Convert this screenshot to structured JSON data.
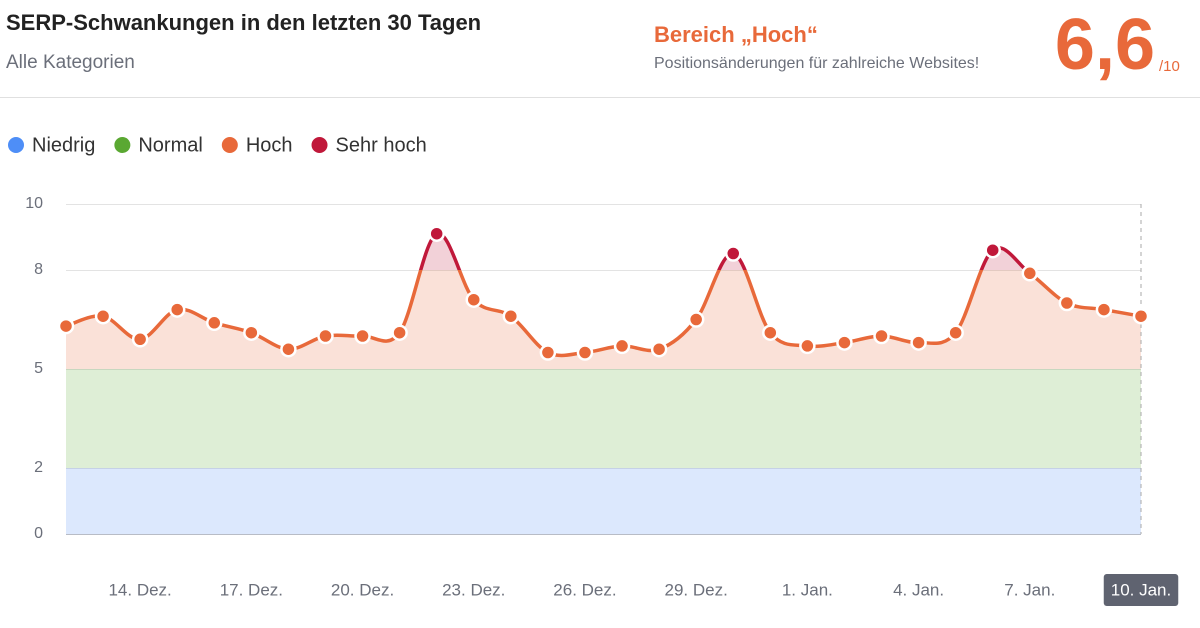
{
  "header": {
    "title": "SERP-Schwankungen in den letzten 30 Tagen",
    "subtitle": "Alle Kategorien",
    "range_label": "Bereich „Hoch“",
    "range_note": "Positionsänderungen für zahlreiche Websites!",
    "score": "6,6",
    "score_scale": "/10"
  },
  "chart_data": {
    "type": "line",
    "categories": [
      null,
      null,
      "14. Dez.",
      null,
      null,
      "17. Dez.",
      null,
      null,
      "20. Dez.",
      null,
      null,
      "23. Dez.",
      null,
      null,
      "26. Dez.",
      null,
      null,
      "29. Dez.",
      null,
      null,
      "1. Jan.",
      null,
      null,
      "4. Jan.",
      null,
      null,
      "7. Jan.",
      null,
      null,
      "10. Jan."
    ],
    "values": [
      6.3,
      6.6,
      5.9,
      6.8,
      6.4,
      6.1,
      5.6,
      6.0,
      6.0,
      6.1,
      9.1,
      7.1,
      6.6,
      5.5,
      5.5,
      5.7,
      5.6,
      6.5,
      8.5,
      6.1,
      5.7,
      5.8,
      6.0,
      5.8,
      6.1,
      8.6,
      7.9,
      7.0,
      6.8,
      6.6
    ],
    "levels": [
      {
        "name": "Niedrig",
        "color": "#4e8ef7",
        "range": [
          0,
          2
        ]
      },
      {
        "name": "Normal",
        "color": "#5aa832",
        "range": [
          2,
          5
        ]
      },
      {
        "name": "Hoch",
        "color": "#e8693a",
        "range": [
          5,
          8
        ]
      },
      {
        "name": "Sehr hoch",
        "color": "#c0183a",
        "range": [
          8,
          10
        ]
      }
    ],
    "ylim": [
      0,
      10
    ],
    "yticks": [
      0,
      2,
      5,
      8,
      10
    ],
    "grid": true
  }
}
